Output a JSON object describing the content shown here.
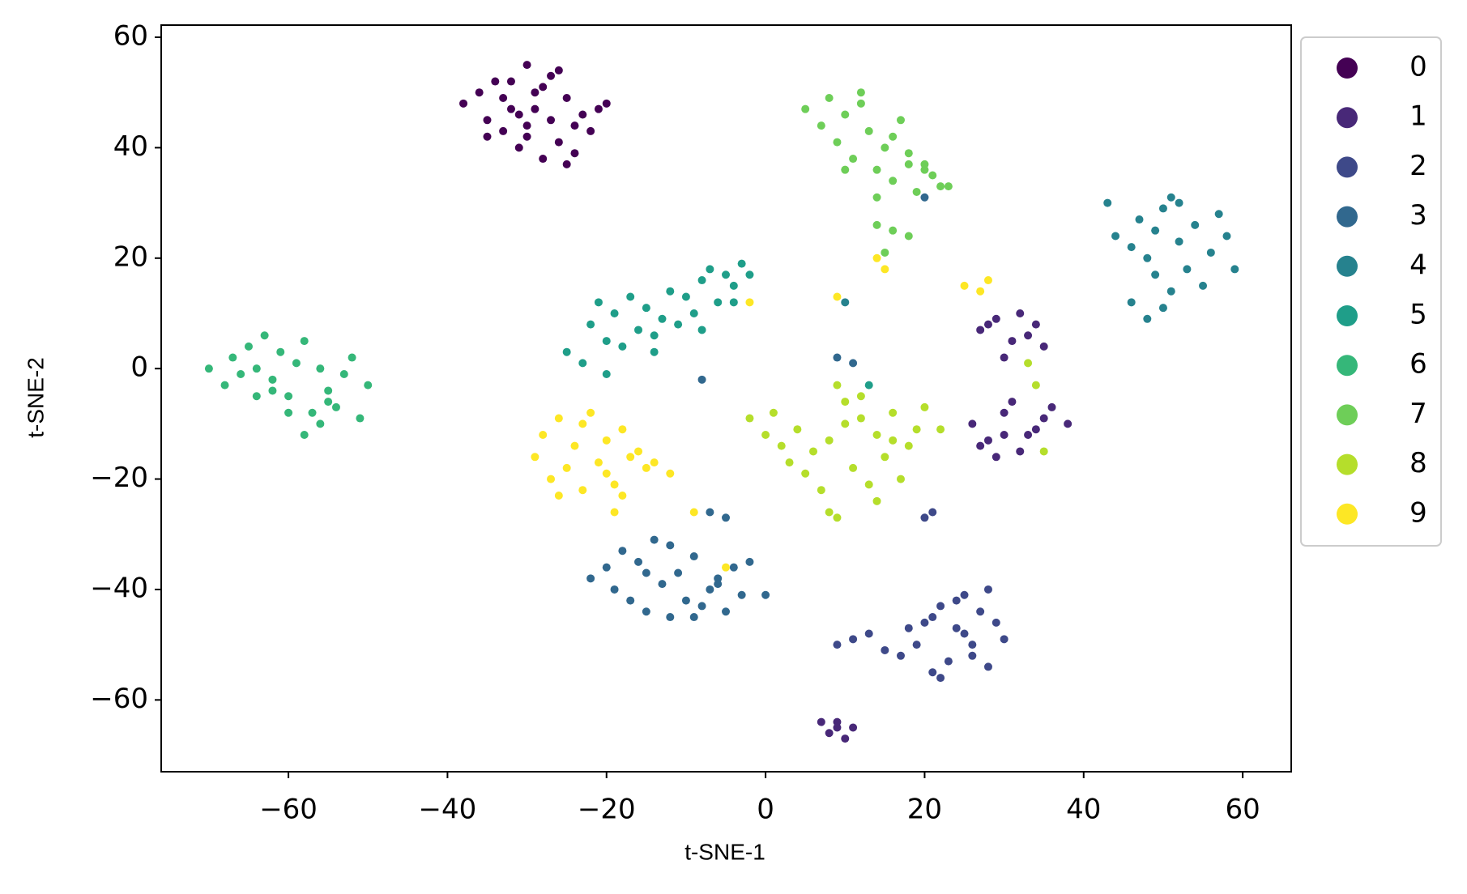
{
  "chart_data": {
    "type": "scatter",
    "x_label": "t-SNE-1",
    "y_label": "t-SNE-2",
    "xlim": [
      -76,
      66.1
    ],
    "ylim": [
      -73,
      62.2
    ],
    "xticks": [
      {
        "value": -60,
        "label": "−60"
      },
      {
        "value": -40,
        "label": "−40"
      },
      {
        "value": -20,
        "label": "−20"
      },
      0,
      20,
      40,
      60
    ],
    "yticks": [
      {
        "value": -60,
        "label": "−60"
      },
      {
        "value": -40,
        "label": "−40"
      },
      {
        "value": -20,
        "label": "−20"
      },
      0,
      20,
      40,
      60
    ],
    "grid": false,
    "legend": "outside-right",
    "series": [
      {
        "name": "0",
        "color": "#440154",
        "x": [
          -38,
          -36,
          -35,
          -34,
          -33,
          -32,
          -31,
          -30,
          -30,
          -29,
          -28,
          -27,
          -26,
          -25,
          -24,
          -23,
          -22,
          -21,
          -20,
          -35,
          -32,
          -29,
          -27,
          -25,
          -33,
          -30,
          -28,
          -31,
          -26,
          -24
        ],
        "values": [
          48,
          50,
          45,
          52,
          43,
          47,
          40,
          55,
          44,
          50,
          38,
          53,
          41,
          49,
          39,
          46,
          43,
          47,
          48,
          42,
          52,
          47,
          45,
          37,
          49,
          42,
          51,
          46,
          54,
          44
        ]
      },
      {
        "name": "1",
        "color": "#482878",
        "x": [
          27,
          29,
          31,
          32,
          34,
          35,
          30,
          33,
          28,
          26,
          28,
          30,
          32,
          34,
          36,
          38,
          27,
          29,
          31,
          33,
          35,
          30,
          7,
          8,
          9,
          10,
          11,
          9
        ],
        "values": [
          7,
          9,
          5,
          10,
          8,
          4,
          2,
          6,
          8,
          -10,
          -13,
          -8,
          -15,
          -11,
          -7,
          -10,
          -14,
          -16,
          -6,
          -12,
          -9,
          -12,
          -64,
          -66,
          -65,
          -67,
          -65,
          -64
        ]
      },
      {
        "name": "2",
        "color": "#3e4989",
        "x": [
          9,
          11,
          13,
          15,
          17,
          19,
          20,
          21,
          22,
          23,
          24,
          25,
          26,
          27,
          28,
          29,
          30,
          22,
          24,
          26,
          28,
          18,
          21,
          25,
          20,
          21
        ],
        "values": [
          -50,
          -49,
          -48,
          -51,
          -52,
          -50,
          -46,
          -55,
          -43,
          -53,
          -47,
          -41,
          -50,
          -44,
          -54,
          -46,
          -49,
          -56,
          -42,
          -52,
          -40,
          -47,
          -45,
          -48,
          -27,
          -26
        ]
      },
      {
        "name": "3",
        "color": "#31688e",
        "x": [
          -22,
          -20,
          -19,
          -18,
          -17,
          -16,
          -15,
          -14,
          -13,
          -12,
          -11,
          -10,
          -9,
          -8,
          -7,
          -6,
          -5,
          -4,
          -3,
          -2,
          0,
          -15,
          -12,
          -9,
          -6,
          -7,
          -5,
          -8,
          20,
          9,
          11
        ],
        "values": [
          -38,
          -36,
          -40,
          -33,
          -42,
          -35,
          -44,
          -31,
          -39,
          -45,
          -37,
          -42,
          -34,
          -43,
          -40,
          -38,
          -44,
          -36,
          -41,
          -35,
          -41,
          -37,
          -32,
          -45,
          -39,
          -26,
          -27,
          -2,
          31,
          2,
          1
        ]
      },
      {
        "name": "4",
        "color": "#26828e",
        "x": [
          43,
          44,
          46,
          47,
          48,
          49,
          50,
          51,
          52,
          53,
          54,
          55,
          56,
          57,
          58,
          59,
          50,
          51,
          48,
          46,
          49,
          52,
          10
        ],
        "values": [
          30,
          24,
          22,
          27,
          20,
          25,
          29,
          31,
          23,
          18,
          26,
          15,
          21,
          28,
          24,
          18,
          11,
          14,
          9,
          12,
          17,
          30,
          12
        ]
      },
      {
        "name": "5",
        "color": "#1f9e89",
        "x": [
          -25,
          -23,
          -22,
          -21,
          -20,
          -19,
          -18,
          -17,
          -16,
          -15,
          -14,
          -13,
          -12,
          -11,
          -10,
          -9,
          -8,
          -7,
          -6,
          -5,
          -4,
          -3,
          -2,
          -20,
          -14,
          -8,
          -4,
          13
        ],
        "values": [
          3,
          1,
          8,
          12,
          5,
          10,
          4,
          13,
          7,
          11,
          6,
          9,
          14,
          8,
          13,
          10,
          16,
          18,
          12,
          17,
          15,
          19,
          17,
          -1,
          3,
          7,
          12,
          -3
        ]
      },
      {
        "name": "6",
        "color": "#35b779",
        "x": [
          -70,
          -68,
          -67,
          -66,
          -65,
          -64,
          -63,
          -62,
          -61,
          -60,
          -59,
          -58,
          -57,
          -56,
          -55,
          -54,
          -53,
          -52,
          -51,
          -50,
          -62,
          -58,
          -55,
          -56,
          -60,
          -64
        ],
        "values": [
          0,
          -3,
          2,
          -1,
          4,
          0,
          6,
          -2,
          3,
          -5,
          1,
          5,
          -8,
          -10,
          -4,
          -7,
          -1,
          2,
          -9,
          -3,
          -4,
          -12,
          -6,
          0,
          -8,
          -5
        ]
      },
      {
        "name": "7",
        "color": "#6ece58",
        "x": [
          5,
          7,
          8,
          9,
          10,
          11,
          12,
          13,
          14,
          15,
          16,
          17,
          18,
          19,
          20,
          21,
          22,
          23,
          10,
          12,
          14,
          16,
          18,
          20,
          14,
          16,
          18,
          15
        ],
        "values": [
          47,
          44,
          49,
          41,
          46,
          38,
          50,
          43,
          36,
          40,
          34,
          45,
          39,
          32,
          37,
          35,
          33,
          33,
          36,
          48,
          31,
          42,
          37,
          36,
          26,
          25,
          24,
          21
        ]
      },
      {
        "name": "8",
        "color": "#b5de2b",
        "x": [
          -2,
          0,
          1,
          2,
          3,
          4,
          5,
          6,
          7,
          8,
          9,
          10,
          11,
          12,
          13,
          14,
          15,
          16,
          17,
          18,
          19,
          20,
          22,
          8,
          10,
          12,
          14,
          16,
          9,
          34,
          33,
          35
        ],
        "values": [
          -9,
          -12,
          -8,
          -14,
          -17,
          -11,
          -19,
          -15,
          -22,
          -13,
          -27,
          -10,
          -18,
          -5,
          -21,
          -12,
          -16,
          -8,
          -20,
          -14,
          -11,
          -7,
          -11,
          -26,
          -6,
          -9,
          -24,
          -13,
          -3,
          -3,
          1,
          -15
        ]
      },
      {
        "name": "9",
        "color": "#fde725",
        "x": [
          -29,
          -28,
          -27,
          -26,
          -25,
          -24,
          -23,
          -22,
          -21,
          -20,
          -19,
          -18,
          -17,
          -16,
          -14,
          -12,
          -26,
          -23,
          -20,
          -18,
          -15,
          -19,
          -9,
          -5,
          -2,
          9,
          14,
          15,
          25,
          27,
          28
        ],
        "values": [
          -16,
          -12,
          -20,
          -9,
          -18,
          -14,
          -22,
          -8,
          -17,
          -13,
          -21,
          -11,
          -16,
          -15,
          -17,
          -19,
          -23,
          -10,
          -19,
          -23,
          -18,
          -26,
          -26,
          -36,
          12,
          13,
          20,
          18,
          15,
          14,
          16
        ]
      }
    ]
  }
}
